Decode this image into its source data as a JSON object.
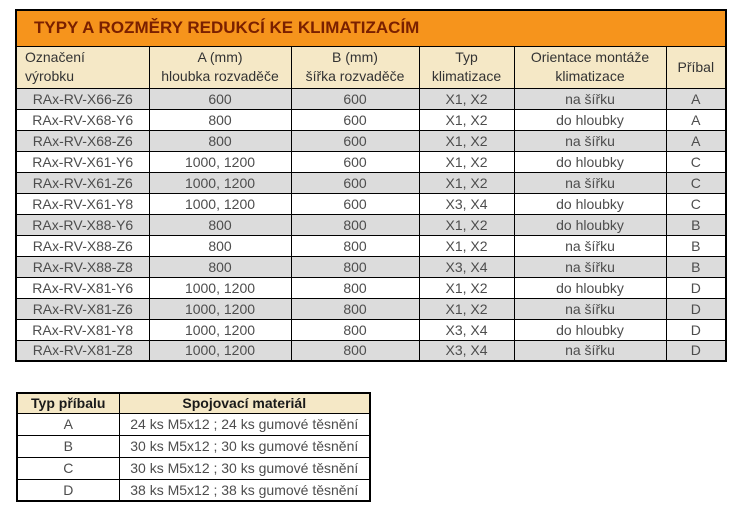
{
  "colors": {
    "title_bg": "#F6941C",
    "title_text": "#7A2000",
    "header_bg": "#F5E8C6",
    "row_bg": "#FFFFFF",
    "row_alt_bg": "#DCDCDC",
    "border": "#000000",
    "header_text": "#333333",
    "body_text": "#4D4D4D"
  },
  "main_table": {
    "title": "TYPY A ROZMĚRY REDUKCÍ KE KLIMATIZACÍM",
    "headers": [
      "Označení\nvýrobku",
      "A (mm)\nhloubka rozvaděče",
      "B (mm)\nšířka rozvaděče",
      "Typ\nklimatizace",
      "Orientace montáže\nklimatizace",
      "Příbal"
    ],
    "rows": [
      [
        "RAx-RV-X66-Z6",
        "600",
        "600",
        "X1, X2",
        "na šířku",
        "A"
      ],
      [
        "RAx-RV-X68-Y6",
        "800",
        "600",
        "X1, X2",
        "do hloubky",
        "A"
      ],
      [
        "RAx-RV-X68-Z6",
        "800",
        "600",
        "X1, X2",
        "na šířku",
        "A"
      ],
      [
        "RAx-RV-X61-Y6",
        "1000, 1200",
        "600",
        "X1, X2",
        "do hloubky",
        "C"
      ],
      [
        "RAx-RV-X61-Z6",
        "1000, 1200",
        "600",
        "X1, X2",
        "na šířku",
        "C"
      ],
      [
        "RAx-RV-X61-Y8",
        "1000, 1200",
        "600",
        "X3, X4",
        "do hloubky",
        "C"
      ],
      [
        "RAx-RV-X88-Y6",
        "800",
        "800",
        "X1, X2",
        "do hloubky",
        "B"
      ],
      [
        "RAx-RV-X88-Z6",
        "800",
        "800",
        "X1, X2",
        "na šířku",
        "B"
      ],
      [
        "RAx-RV-X88-Z8",
        "800",
        "800",
        "X3, X4",
        "na šířku",
        "B"
      ],
      [
        "RAx-RV-X81-Y6",
        "1000, 1200",
        "800",
        "X1, X2",
        "do hloubky",
        "D"
      ],
      [
        "RAx-RV-X81-Z6",
        "1000, 1200",
        "800",
        "X1, X2",
        "na šířku",
        "D"
      ],
      [
        "RAx-RV-X81-Y8",
        "1000, 1200",
        "800",
        "X3, X4",
        "do hloubky",
        "D"
      ],
      [
        "RAx-RV-X81-Z8",
        "1000, 1200",
        "800",
        "X3, X4",
        "na šířku",
        "D"
      ]
    ]
  },
  "accessories_table": {
    "headers": [
      "Typ příbalu",
      "Spojovací materiál"
    ],
    "rows": [
      [
        "A",
        "24 ks M5x12 ; 24 ks gumové těsnění"
      ],
      [
        "B",
        "30 ks M5x12 ; 30 ks gumové těsnění"
      ],
      [
        "C",
        "30 ks M5x12 ; 30 ks gumové těsnění"
      ],
      [
        "D",
        "38 ks M5x12 ; 38 ks gumové těsnění"
      ]
    ]
  }
}
